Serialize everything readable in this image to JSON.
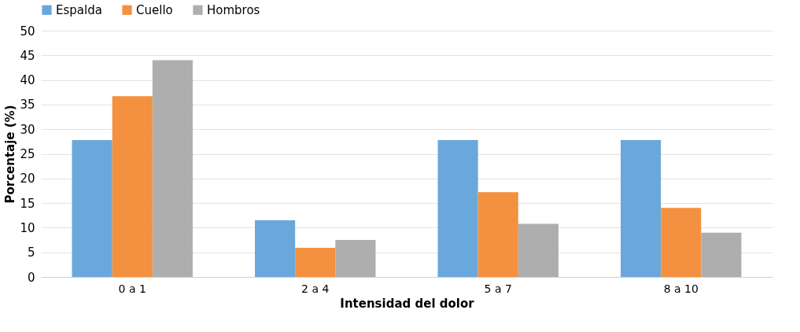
{
  "chart_data": {
    "type": "bar",
    "xlabel": "Intensidad del dolor",
    "ylabel": "Porcentaje (%)",
    "categories": [
      "0 a 1",
      "2 a 4",
      "5 a 7",
      "8 a 10"
    ],
    "series": [
      {
        "name": "Espalda",
        "color": "#6aa8dc",
        "values": [
          27.8,
          11.5,
          27.8,
          27.8
        ]
      },
      {
        "name": "Cuello",
        "color": "#f39140",
        "values": [
          36.7,
          5.9,
          17.2,
          14.0
        ]
      },
      {
        "name": "Hombros",
        "color": "#aeaeae",
        "values": [
          44.0,
          7.5,
          10.8,
          9.0
        ]
      }
    ],
    "ylim": [
      0,
      50
    ],
    "yticks": [
      0,
      5,
      10,
      15,
      20,
      25,
      30,
      35,
      40,
      45,
      50
    ],
    "grid": "y",
    "legend": "top"
  }
}
